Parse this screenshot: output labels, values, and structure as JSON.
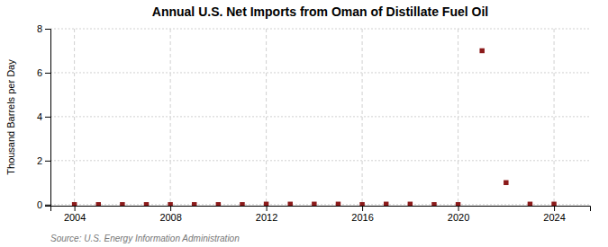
{
  "chart_data": {
    "type": "scatter",
    "title": "Annual U.S. Net Imports from Oman of Distillate Fuel Oil",
    "ylabel": "Thousand Barrels per Day",
    "source": "Source: U.S. Energy Information Administration",
    "x": [
      2004,
      2005,
      2006,
      2007,
      2008,
      2009,
      2010,
      2011,
      2012,
      2013,
      2014,
      2015,
      2016,
      2017,
      2018,
      2019,
      2020,
      2021,
      2022,
      2023,
      2024
    ],
    "values": [
      0,
      0,
      0,
      0,
      0,
      0,
      0,
      0,
      0.02,
      0.02,
      0.02,
      0.02,
      0,
      0.02,
      0.02,
      0,
      0,
      7.0,
      1.0,
      0.02,
      0.02
    ],
    "color": "#8b1a1a",
    "marker": "square",
    "xlim": [
      2003,
      2025.5
    ],
    "ylim": [
      -0.05,
      8
    ],
    "xticks": [
      2004,
      2008,
      2012,
      2016,
      2020,
      2024
    ],
    "yticks": [
      0,
      2,
      4,
      6,
      8
    ],
    "grid": true
  }
}
